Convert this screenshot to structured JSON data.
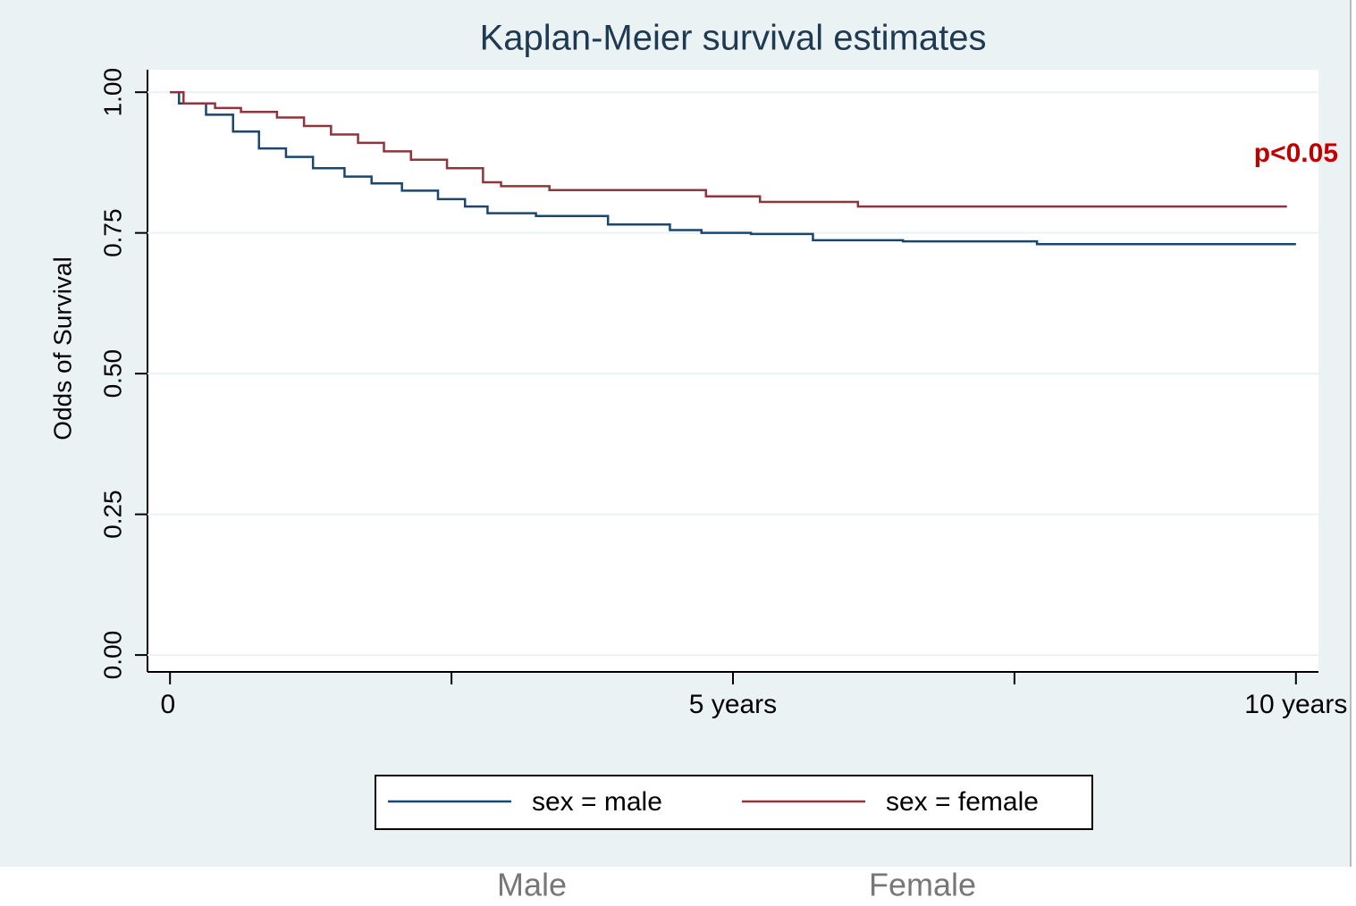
{
  "chart_data": {
    "type": "step",
    "title": "Kaplan-Meier survival estimates",
    "y_label": "Odds of Survival",
    "annotation": "p<0.05",
    "bottom_labels": [
      "Male",
      "Female"
    ],
    "xlim": [
      -0.2,
      10.2
    ],
    "ylim": [
      -0.03,
      1.04
    ],
    "xticks": [
      {
        "value": 0,
        "label": "0"
      },
      {
        "value": 2.5,
        "label": null
      },
      {
        "value": 5,
        "label": "5 years"
      },
      {
        "value": 7.5,
        "label": null
      },
      {
        "value": 10,
        "label": "10 years"
      }
    ],
    "yticks": [
      {
        "value": 0,
        "label": "0.00"
      },
      {
        "value": 0.25,
        "label": "0.25"
      },
      {
        "value": 0.5,
        "label": "0.50"
      },
      {
        "value": 0.75,
        "label": "0.75"
      },
      {
        "value": 1,
        "label": "1.00"
      }
    ],
    "grid": true,
    "series": [
      {
        "name": "sex = male",
        "color": "#1a476f",
        "x": [
          0,
          0.08,
          0.32,
          0.56,
          0.79,
          1.03,
          1.27,
          1.55,
          1.79,
          2.06,
          2.38,
          2.62,
          2.82,
          3.25,
          3.89,
          4.44,
          4.72,
          5.16,
          5.71,
          6.51,
          7.7,
          10
        ],
        "values": [
          1.0,
          0.98,
          0.96,
          0.93,
          0.9,
          0.885,
          0.865,
          0.85,
          0.838,
          0.825,
          0.81,
          0.797,
          0.785,
          0.78,
          0.765,
          0.755,
          0.75,
          0.748,
          0.737,
          0.735,
          0.73,
          0.73
        ]
      },
      {
        "name": "sex = female",
        "color": "#90353b",
        "x": [
          0,
          0.12,
          0.4,
          0.63,
          0.95,
          1.19,
          1.43,
          1.67,
          1.9,
          2.14,
          2.46,
          2.78,
          2.94,
          3.37,
          4.76,
          5.24,
          6.11,
          9.92
        ],
        "values": [
          1.0,
          0.98,
          0.972,
          0.965,
          0.955,
          0.94,
          0.925,
          0.91,
          0.895,
          0.88,
          0.865,
          0.84,
          0.833,
          0.826,
          0.815,
          0.805,
          0.797,
          0.797
        ]
      }
    ]
  }
}
